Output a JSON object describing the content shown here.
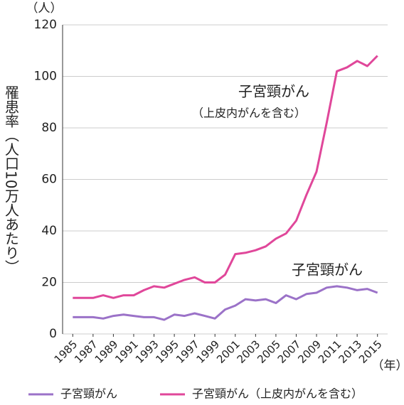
{
  "chart_data": {
    "type": "line",
    "y_unit": "（人）",
    "x_unit": "（年）",
    "ylabel": "罹患率（人口10万人あたり）",
    "annotations": [
      "子宮頸がん",
      "（上皮内がんを含む）",
      "子宮頸がん"
    ],
    "x": [
      1985,
      1986,
      1987,
      1988,
      1989,
      1990,
      1991,
      1992,
      1993,
      1994,
      1995,
      1996,
      1997,
      1998,
      1999,
      2000,
      2001,
      2002,
      2003,
      2004,
      2005,
      2006,
      2007,
      2008,
      2009,
      2010,
      2011,
      2012,
      2013,
      2014,
      2015
    ],
    "series": [
      {
        "name": "子宮頸がん",
        "color": "#9b72c8",
        "values": [
          6.5,
          6.5,
          6.5,
          6,
          7,
          7.5,
          7,
          6.5,
          6.5,
          5.5,
          7.5,
          7,
          8,
          7,
          6,
          9.5,
          11,
          13.5,
          13,
          13.5,
          12,
          15,
          13.5,
          15.5,
          16,
          18,
          18.5,
          18,
          17,
          17.5,
          16
        ]
      },
      {
        "name": "子宮頸がん（上皮内がんを含む）",
        "color": "#e0479a",
        "values": [
          14,
          14,
          14,
          15,
          14,
          15,
          15,
          17,
          18.5,
          18,
          19.5,
          21,
          22,
          20,
          20,
          23,
          31,
          31.5,
          32.5,
          34,
          37,
          39,
          44,
          54,
          63,
          82,
          102,
          103.5,
          106,
          104,
          108
        ]
      }
    ],
    "xlim": [
      1984,
      2016
    ],
    "xticks": [
      1985,
      1987,
      1989,
      1991,
      1993,
      1995,
      1997,
      1999,
      2001,
      2003,
      2005,
      2007,
      2009,
      2011,
      2013,
      2015
    ],
    "ylim": [
      0,
      120
    ],
    "yticks": [
      0,
      20,
      40,
      60,
      80,
      100,
      120
    ],
    "grid": true
  }
}
